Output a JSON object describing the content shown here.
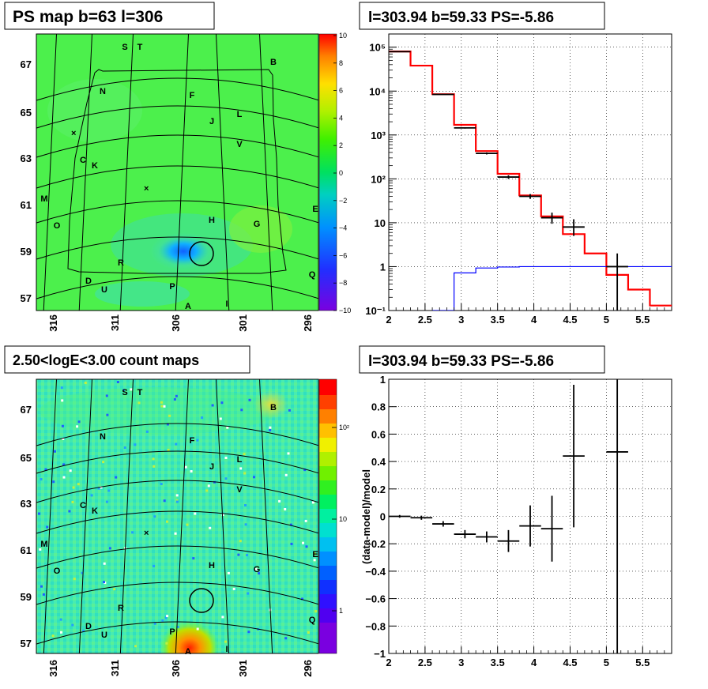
{
  "panels": {
    "map_ps": {
      "title": "PS map b=63 l=306",
      "ytick_labels": [
        "67",
        "65",
        "63",
        "61",
        "59",
        "57"
      ],
      "ytick_values": [
        67,
        65,
        63,
        61,
        59,
        57
      ],
      "xtick_labels": [
        "316",
        "311",
        "306",
        "301",
        "296"
      ],
      "colorbar_labels": [
        "10",
        "8",
        "6",
        "4",
        "2",
        "0",
        "−2",
        "−4",
        "−6",
        "−8",
        "−10"
      ],
      "colorbar_range": [
        -10,
        10
      ],
      "source_labels": [
        "S",
        "T",
        "B",
        "N",
        "F",
        "L",
        "J",
        "V",
        "C",
        "K",
        "M",
        "E",
        "H",
        "G",
        "O",
        "R",
        "Q",
        "D",
        "U",
        "P",
        "A",
        "I"
      ]
    },
    "map_counts": {
      "title": "2.50<logE<3.00 count maps",
      "ytick_labels": [
        "67",
        "65",
        "63",
        "61",
        "59",
        "57"
      ],
      "xtick_labels": [
        "316",
        "311",
        "306",
        "301",
        "296"
      ],
      "colorbar_labels": [
        "10²",
        "10",
        "1"
      ],
      "source_labels": [
        "S",
        "T",
        "B",
        "N",
        "F",
        "L",
        "J",
        "V",
        "C",
        "K",
        "M",
        "E",
        "H",
        "G",
        "O",
        "R",
        "Q",
        "D",
        "U",
        "P",
        "A",
        "I"
      ]
    },
    "spectrum": {
      "title": "l=303.94 b=59.33 PS=-5.86",
      "xtick_labels": [
        "2",
        "2.5",
        "3",
        "3.5",
        "4",
        "4.5",
        "5",
        "5.5"
      ],
      "ytick_labels": [
        "10⁵",
        "10⁴",
        "10³",
        "10²",
        "10",
        "1",
        "10⁻¹"
      ]
    },
    "residual": {
      "title": "l=303.94 b=59.33 PS=-5.86",
      "ylabel": "(data-model)/model",
      "xtick_labels": [
        "2",
        "2.5",
        "3",
        "3.5",
        "4",
        "4.5",
        "5",
        "5.5"
      ],
      "ytick_labels": [
        "1",
        "0.8",
        "0.6",
        "0.4",
        "0.2",
        "0",
        "−0.2",
        "−0.4",
        "−0.6",
        "−0.8",
        "−1"
      ]
    }
  },
  "colors": {
    "model_red": "#ff0000",
    "background_blue": "#0000ff",
    "data_black": "#000000"
  },
  "chart_data": [
    {
      "type": "heatmap",
      "title": "PS map b=63 l=306",
      "x_ticks": [
        316,
        311,
        306,
        301,
        296
      ],
      "y_ticks": [
        67,
        65,
        63,
        61,
        59,
        57
      ],
      "color_range": [
        -10,
        10
      ]
    },
    {
      "type": "line",
      "title": "l=303.94 b=59.33 PS=-5.86",
      "xlim": [
        2,
        5.9
      ],
      "ylim": [
        0.1,
        200000
      ],
      "log_y": true,
      "grid": true,
      "series": [
        {
          "name": "",
          "kind": "step",
          "color": "#ff0000",
          "edges": [
            2.0,
            2.3,
            2.6,
            2.9,
            3.2,
            3.5,
            3.8,
            4.1,
            4.4,
            4.7,
            5.0,
            5.3,
            5.6,
            5.9
          ],
          "values": [
            80000,
            38000,
            8500,
            1700,
            430,
            130,
            42,
            14,
            5.5,
            2.0,
            0.65,
            0.3,
            0.13
          ]
        },
        {
          "name": "",
          "kind": "step",
          "color": "#0000ff",
          "edges": [
            2.6,
            2.9,
            3.2,
            3.5,
            3.8,
            4.1,
            4.4,
            4.7,
            5.0,
            5.3,
            5.6,
            5.9
          ],
          "values": [
            0.1,
            0.72,
            0.93,
            0.98,
            1.0,
            1.0,
            1.0,
            1.0,
            1.0,
            1.0,
            1.0
          ],
          "start": 2.6
        },
        {
          "name": "",
          "kind": "points",
          "color": "#000000",
          "x": [
            2.15,
            2.75,
            3.05,
            3.35,
            3.65,
            3.95,
            4.25,
            4.55,
            5.15
          ],
          "xerr": [
            0.15,
            0.15,
            0.15,
            0.15,
            0.15,
            0.15,
            0.15,
            0.15,
            0.15
          ],
          "y": [
            79000,
            8400,
            1450,
            380,
            110,
            40,
            13,
            8,
            1
          ],
          "ylow": [
            78700,
            8300,
            1400,
            360,
            100,
            35,
            9.5,
            5,
            0.1
          ],
          "yhigh": [
            79300,
            8500,
            1500,
            400,
            120,
            45,
            17,
            12,
            2
          ]
        }
      ]
    },
    {
      "type": "scatter",
      "title": "l=303.94 b=59.33 PS=-5.86",
      "ylabel": "(data-model)/model",
      "xlim": [
        2,
        5.9
      ],
      "ylim": [
        -1,
        1
      ],
      "grid": true,
      "x": [
        2.15,
        2.45,
        2.75,
        3.05,
        3.35,
        3.65,
        3.95,
        4.25,
        4.55,
        5.15
      ],
      "xerr": [
        0.15,
        0.15,
        0.15,
        0.15,
        0.15,
        0.15,
        0.15,
        0.15,
        0.15,
        0.15
      ],
      "y": [
        0.0,
        -0.01,
        -0.055,
        -0.13,
        -0.15,
        -0.18,
        -0.07,
        -0.09,
        0.44,
        0.47
      ],
      "yerr": [
        0.01,
        0.015,
        0.02,
        0.03,
        0.04,
        0.08,
        0.15,
        0.24,
        0.52,
        1.5
      ]
    },
    {
      "type": "heatmap",
      "title": "2.50<logE<3.00 count maps",
      "x_ticks": [
        316,
        311,
        306,
        301,
        296
      ],
      "y_ticks": [
        67,
        65,
        63,
        61,
        59,
        57
      ]
    }
  ]
}
